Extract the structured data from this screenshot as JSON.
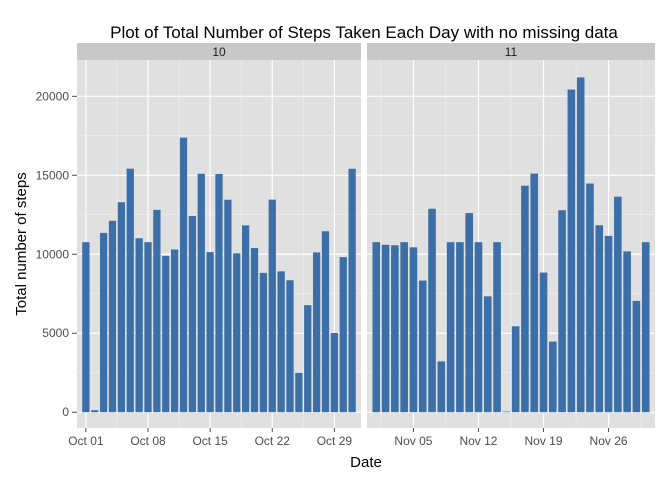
{
  "chart_data": {
    "type": "bar",
    "title": "Plot of Total Number of Steps Taken Each Day with no missing data",
    "xlabel": "Date",
    "ylabel": "Total number of steps",
    "ylim": [
      -1000,
      22300
    ],
    "y_ticks": [
      0,
      5000,
      10000,
      15000,
      20000
    ],
    "grid": true,
    "bar_color": "#3c6fa8",
    "panel_background": "#e0e0e0",
    "strip_background": "#c8c8c8",
    "grid_color": "#ffffff",
    "facets": [
      {
        "strip_label": "10",
        "x_range": [
          "2012-09-30",
          "2012-11-01"
        ],
        "x_ticks": [
          {
            "date": "2012-10-01",
            "label": "Oct 01"
          },
          {
            "date": "2012-10-08",
            "label": "Oct 08"
          },
          {
            "date": "2012-10-15",
            "label": "Oct 15"
          },
          {
            "date": "2012-10-22",
            "label": "Oct 22"
          },
          {
            "date": "2012-10-29",
            "label": "Oct 29"
          }
        ],
        "x": [
          "2012-10-01",
          "2012-10-02",
          "2012-10-03",
          "2012-10-04",
          "2012-10-05",
          "2012-10-06",
          "2012-10-07",
          "2012-10-08",
          "2012-10-09",
          "2012-10-10",
          "2012-10-11",
          "2012-10-12",
          "2012-10-13",
          "2012-10-14",
          "2012-10-15",
          "2012-10-16",
          "2012-10-17",
          "2012-10-18",
          "2012-10-19",
          "2012-10-20",
          "2012-10-21",
          "2012-10-22",
          "2012-10-23",
          "2012-10-24",
          "2012-10-25",
          "2012-10-26",
          "2012-10-27",
          "2012-10-28",
          "2012-10-29",
          "2012-10-30",
          "2012-10-31"
        ],
        "values": [
          10766,
          126,
          11352,
          12116,
          13294,
          15420,
          11015,
          10766,
          12811,
          9900,
          10304,
          17382,
          12426,
          15098,
          10139,
          15084,
          13452,
          10056,
          11829,
          10395,
          8821,
          13460,
          8918,
          8355,
          2492,
          6778,
          10119,
          11458,
          5018,
          9819,
          15414
        ]
      },
      {
        "strip_label": "11",
        "x_range": [
          "2012-10-31",
          "2012-12-01"
        ],
        "x_ticks": [
          {
            "date": "2012-11-05",
            "label": "Nov 05"
          },
          {
            "date": "2012-11-12",
            "label": "Nov 12"
          },
          {
            "date": "2012-11-19",
            "label": "Nov 19"
          },
          {
            "date": "2012-11-26",
            "label": "Nov 26"
          }
        ],
        "x": [
          "2012-11-01",
          "2012-11-02",
          "2012-11-03",
          "2012-11-04",
          "2012-11-05",
          "2012-11-06",
          "2012-11-07",
          "2012-11-08",
          "2012-11-09",
          "2012-11-10",
          "2012-11-11",
          "2012-11-12",
          "2012-11-13",
          "2012-11-14",
          "2012-11-15",
          "2012-11-16",
          "2012-11-17",
          "2012-11-18",
          "2012-11-19",
          "2012-11-20",
          "2012-11-21",
          "2012-11-22",
          "2012-11-23",
          "2012-11-24",
          "2012-11-25",
          "2012-11-26",
          "2012-11-27",
          "2012-11-28",
          "2012-11-29",
          "2012-11-30"
        ],
        "values": [
          10766,
          10600,
          10571,
          10766,
          10439,
          8334,
          12883,
          3219,
          10766,
          10766,
          12608,
          10765,
          7336,
          10766,
          41,
          5441,
          14339,
          15110,
          8841,
          4472,
          12787,
          20427,
          21194,
          14478,
          11834,
          11162,
          13646,
          10183,
          7047,
          10766
        ]
      }
    ]
  }
}
